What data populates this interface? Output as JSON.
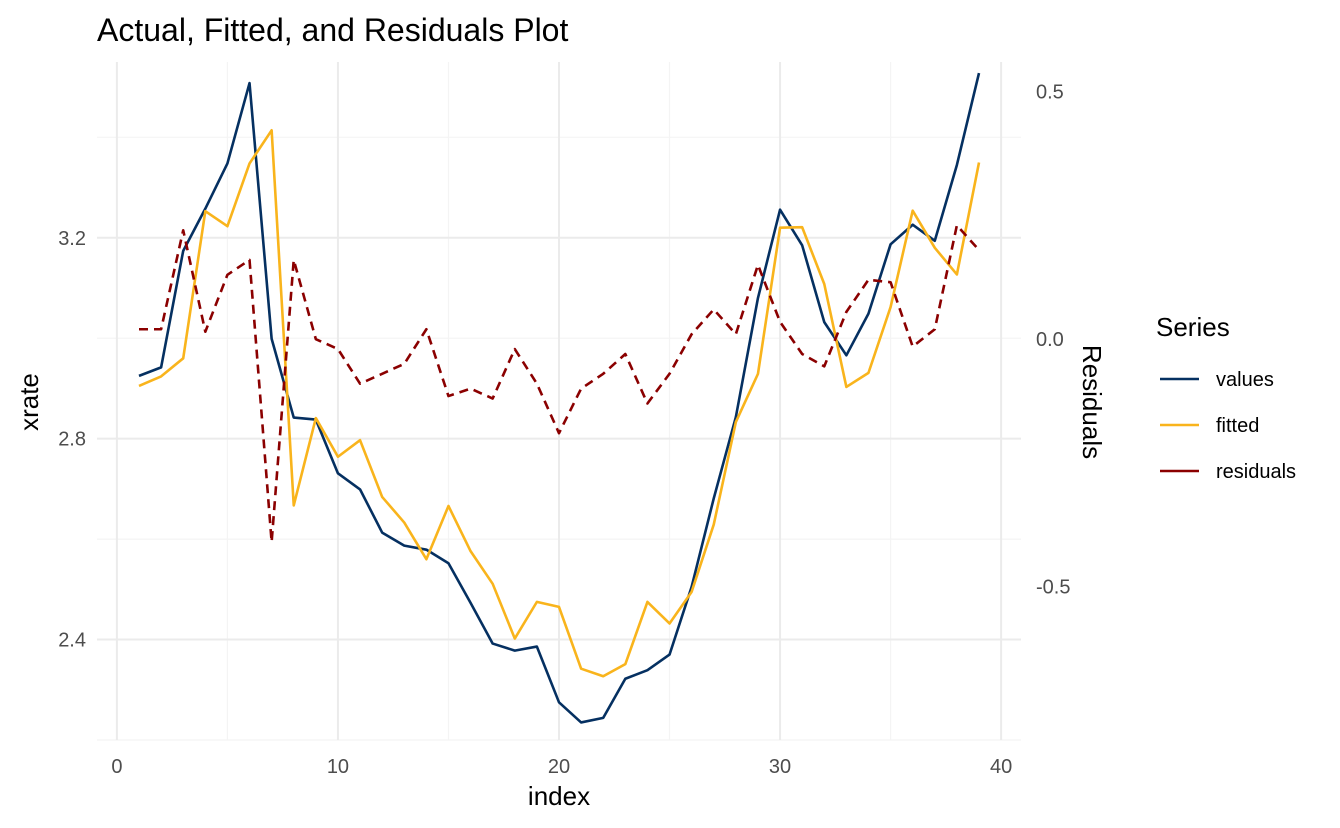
{
  "chart_data": {
    "type": "line",
    "title": "Actual, Fitted, and Residuals Plot",
    "xlabel": "index",
    "ylabel": "xrate",
    "y2label": "Residuals",
    "xlim": [
      -0.9,
      40.9
    ],
    "ylim": [
      2.2,
      3.55
    ],
    "y2lim": [
      -0.81,
      0.56
    ],
    "x_ticks": [
      0,
      10,
      20,
      30,
      40
    ],
    "y_ticks": [
      2.4,
      2.8,
      3.2
    ],
    "y_tick_labels": [
      "2.4",
      "2.8",
      "3.2"
    ],
    "y2_ticks": [
      -0.5,
      0.0,
      0.5
    ],
    "y2_tick_labels": [
      "-0.5",
      "0.0",
      "0.5"
    ],
    "grid": true,
    "legend_title": "Series",
    "legend_position": "right",
    "x": [
      1,
      2,
      3,
      4,
      5,
      6,
      7,
      8,
      9,
      10,
      11,
      12,
      13,
      14,
      15,
      16,
      17,
      18,
      19,
      20,
      21,
      22,
      23,
      24,
      25,
      26,
      27,
      28,
      29,
      30,
      31,
      32,
      33,
      34,
      35,
      36,
      37,
      38,
      39
    ],
    "series": [
      {
        "name": "values",
        "axis": "left",
        "color": "#053061",
        "dash": "solid",
        "values": [
          2.925,
          2.942,
          3.174,
          3.258,
          3.348,
          3.508,
          2.999,
          2.842,
          2.838,
          2.731,
          2.699,
          2.613,
          2.587,
          2.579,
          2.552,
          2.473,
          2.392,
          2.378,
          2.386,
          2.275,
          2.235,
          2.244,
          2.322,
          2.339,
          2.37,
          2.505,
          2.681,
          2.843,
          3.08,
          3.256,
          3.185,
          3.032,
          2.966,
          3.049,
          3.187,
          3.226,
          3.194,
          3.345,
          3.528
        ]
      },
      {
        "name": "fitted",
        "axis": "left",
        "color": "#f9b41c",
        "dash": "solid",
        "values": [
          2.905,
          2.924,
          2.96,
          3.253,
          3.223,
          3.348,
          3.414,
          2.667,
          2.841,
          2.764,
          2.797,
          2.684,
          2.633,
          2.56,
          2.666,
          2.576,
          2.511,
          2.402,
          2.475,
          2.465,
          2.342,
          2.327,
          2.351,
          2.475,
          2.432,
          2.495,
          2.629,
          2.833,
          2.929,
          3.22,
          3.221,
          3.108,
          2.903,
          2.931,
          3.062,
          3.254,
          3.18,
          3.127,
          3.35
        ]
      },
      {
        "name": "residuals",
        "axis": "right",
        "color": "#8b0000",
        "dash": "dashed",
        "values": [
          0.02,
          0.02,
          0.22,
          0.015,
          0.13,
          0.16,
          -0.41,
          0.16,
          0.0,
          -0.02,
          -0.09,
          -0.07,
          -0.05,
          0.02,
          -0.115,
          -0.1,
          -0.12,
          -0.02,
          -0.09,
          -0.19,
          -0.1,
          -0.07,
          -0.03,
          -0.13,
          -0.07,
          0.01,
          0.06,
          0.01,
          0.15,
          0.035,
          -0.03,
          -0.055,
          0.055,
          0.12,
          0.115,
          -0.015,
          0.02,
          0.23,
          0.18
        ]
      }
    ]
  }
}
